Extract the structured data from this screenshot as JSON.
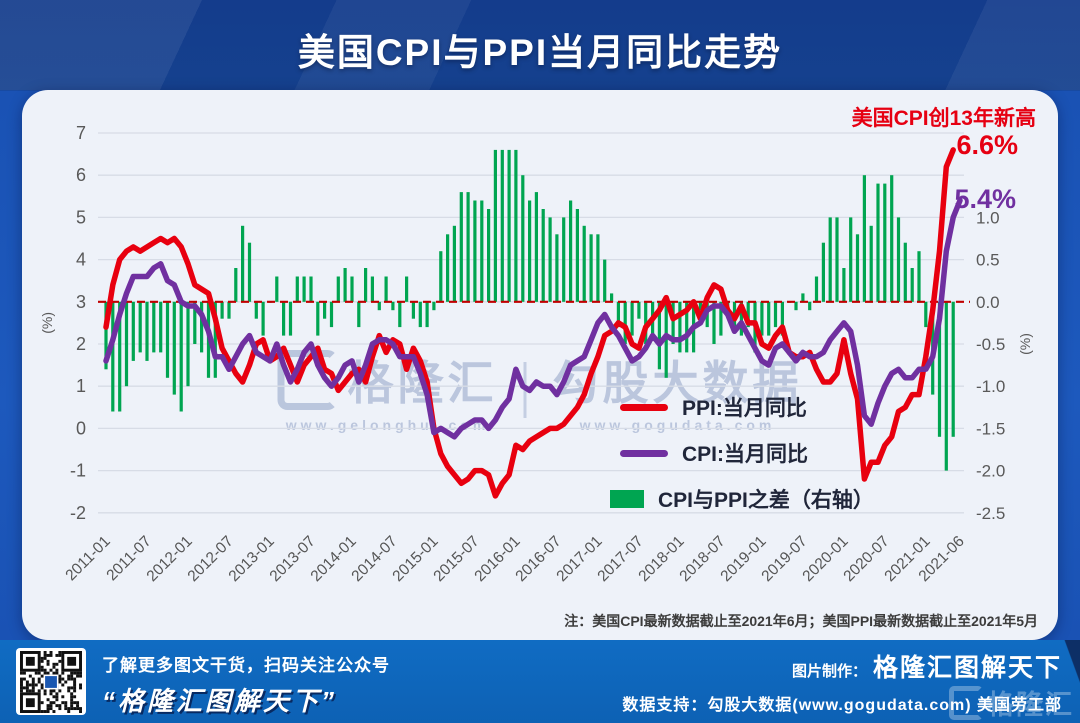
{
  "header": {
    "title": "美国CPI与PPI当月同比走势"
  },
  "chart_data": {
    "type": "line+bar",
    "x_start": "2011-01",
    "x_end": "2021-06",
    "x_tick_labels": [
      {
        "label": "2011-01",
        "index": 0
      },
      {
        "label": "2011-07",
        "index": 6
      },
      {
        "label": "2012-01",
        "index": 12
      },
      {
        "label": "2012-07",
        "index": 18
      },
      {
        "label": "2013-01",
        "index": 24
      },
      {
        "label": "2013-07",
        "index": 30
      },
      {
        "label": "2014-01",
        "index": 36
      },
      {
        "label": "2014-07",
        "index": 42
      },
      {
        "label": "2015-01",
        "index": 48
      },
      {
        "label": "2015-07",
        "index": 54
      },
      {
        "label": "2016-01",
        "index": 60
      },
      {
        "label": "2016-07",
        "index": 66
      },
      {
        "label": "2017-01",
        "index": 72
      },
      {
        "label": "2017-07",
        "index": 78
      },
      {
        "label": "2018-01",
        "index": 84
      },
      {
        "label": "2018-07",
        "index": 90
      },
      {
        "label": "2019-01",
        "index": 96
      },
      {
        "label": "2019-07",
        "index": 102
      },
      {
        "label": "2020-01",
        "index": 108
      },
      {
        "label": "2020-07",
        "index": 114
      },
      {
        "label": "2021-01",
        "index": 120
      },
      {
        "label": "2021-06",
        "index": 125
      }
    ],
    "left_axis": {
      "unit": "(%)",
      "ticks": [
        7,
        6,
        5,
        4,
        3,
        2,
        1,
        0,
        -1,
        -2
      ],
      "range": [
        -2,
        7
      ]
    },
    "right_axis": {
      "unit": "(%)",
      "ticks": [
        {
          "label": "1.0",
          "left_value": 5
        },
        {
          "label": "0.5",
          "left_value": 4
        },
        {
          "label": "0.0",
          "left_value": 3
        },
        {
          "label": "-0.5",
          "left_value": 2
        },
        {
          "label": "-1.0",
          "left_value": 1
        },
        {
          "label": "-1.5",
          "left_value": 0
        },
        {
          "label": "-2.0",
          "left_value": -1
        },
        {
          "label": "-2.5",
          "left_value": -2
        }
      ]
    },
    "reference_line": {
      "left_value": 3,
      "right_value": 0.0,
      "style": "dashed",
      "color": "#c00000"
    },
    "series": [
      {
        "name": "PPI:当月同比",
        "type": "line",
        "axis": "left",
        "color": "#e8000f",
        "values": [
          2.4,
          3.4,
          4.0,
          4.2,
          4.3,
          4.2,
          4.3,
          4.4,
          4.5,
          4.4,
          4.5,
          4.3,
          3.9,
          3.4,
          3.3,
          3.2,
          2.6,
          1.9,
          1.6,
          1.3,
          1.1,
          1.5,
          2.0,
          2.1,
          1.6,
          1.7,
          1.9,
          1.5,
          1.1,
          1.5,
          1.7,
          1.9,
          1.4,
          1.3,
          0.9,
          1.1,
          1.3,
          1.4,
          1.1,
          1.7,
          2.2,
          1.8,
          2.1,
          2.0,
          1.4,
          1.9,
          1.6,
          1.1,
          0.0,
          -0.6,
          -0.9,
          -1.1,
          -1.3,
          -1.2,
          -1.0,
          -1.0,
          -1.1,
          -1.6,
          -1.3,
          -1.1,
          -0.4,
          -0.5,
          -0.3,
          -0.2,
          -0.1,
          0.0,
          0.0,
          0.1,
          0.3,
          0.5,
          0.8,
          1.3,
          1.7,
          2.2,
          2.3,
          2.5,
          2.4,
          2.0,
          1.9,
          2.4,
          2.6,
          2.8,
          3.1,
          2.6,
          2.7,
          2.8,
          3.0,
          2.6,
          3.1,
          3.4,
          3.3,
          2.8,
          2.6,
          2.9,
          2.5,
          2.5,
          2.0,
          1.9,
          2.2,
          2.4,
          1.8,
          1.7,
          1.7,
          1.8,
          1.4,
          1.1,
          1.1,
          1.3,
          2.1,
          1.3,
          0.7,
          -1.2,
          -0.8,
          -0.8,
          -0.4,
          -0.2,
          0.4,
          0.5,
          0.8,
          0.8,
          1.7,
          2.8,
          4.2,
          6.2,
          6.6,
          null
        ]
      },
      {
        "name": "CPI:当月同比",
        "type": "line",
        "axis": "left",
        "color": "#7030a0",
        "values": [
          1.6,
          2.1,
          2.7,
          3.2,
          3.6,
          3.6,
          3.6,
          3.8,
          3.9,
          3.5,
          3.4,
          3.0,
          2.9,
          2.9,
          2.7,
          2.3,
          1.7,
          1.7,
          1.4,
          1.7,
          2.0,
          2.2,
          1.8,
          1.7,
          1.6,
          2.0,
          1.5,
          1.1,
          1.4,
          1.8,
          2.0,
          1.5,
          1.2,
          1.0,
          1.2,
          1.5,
          1.6,
          1.1,
          1.5,
          2.0,
          2.1,
          2.1,
          2.0,
          1.7,
          1.7,
          1.7,
          1.3,
          0.8,
          -0.1,
          0.0,
          -0.1,
          -0.2,
          0.0,
          0.1,
          0.2,
          0.2,
          0.0,
          0.2,
          0.5,
          0.7,
          1.4,
          1.0,
          0.9,
          1.1,
          1.0,
          1.0,
          0.8,
          1.1,
          1.5,
          1.6,
          1.7,
          2.1,
          2.5,
          2.7,
          2.4,
          2.2,
          1.9,
          1.6,
          1.7,
          1.9,
          2.2,
          2.0,
          2.2,
          2.1,
          2.1,
          2.2,
          2.4,
          2.5,
          2.8,
          2.9,
          2.9,
          2.7,
          2.3,
          2.5,
          2.2,
          1.9,
          1.6,
          1.5,
          1.9,
          2.0,
          1.8,
          1.6,
          1.8,
          1.7,
          1.7,
          1.8,
          2.1,
          2.3,
          2.5,
          2.3,
          1.5,
          0.3,
          0.1,
          0.6,
          1.0,
          1.3,
          1.4,
          1.2,
          1.2,
          1.4,
          1.4,
          1.7,
          2.6,
          4.2,
          5.0,
          5.4
        ]
      },
      {
        "name": "CPI与PPI之差（右轴）",
        "type": "bar",
        "axis": "right",
        "color": "#00a551",
        "derived": "CPI - PPI"
      }
    ],
    "annotations": {
      "headline": "美国CPI创13年新高",
      "ppi_last_label": "6.6%",
      "cpi_last_label": "5.4%"
    },
    "note": "注：美国CPI最新数据截止至2021年6月；美国PPI最新数据截止至2021年5月",
    "grid": true,
    "legend_position": "inside lower right"
  },
  "watermark": {
    "brand": "格隆汇",
    "brand_url": "www.gelonghui.com",
    "partner": "勾股大数据",
    "partner_url": "www.gogudata.com"
  },
  "footer": {
    "qr_caption_line1": "了解更多图文干货，扫码关注公众号",
    "qr_caption_line2": "“格隆汇图解天下”",
    "credit_label": "图片制作：",
    "credit_brand": "格隆汇图解天下",
    "data_support": "数据支持：勾股大数据(www.gogudata.com)  美国劳工部",
    "logo_text": "格隆汇"
  },
  "colors": {
    "ppi_red": "#e8000f",
    "cpi_purple": "#7030a0",
    "diff_green": "#00a551",
    "reference_red": "#c00000",
    "panel_bg": "#eef2f9",
    "header_blue": "#15418e",
    "footer_blue": "#0f6cc4"
  }
}
